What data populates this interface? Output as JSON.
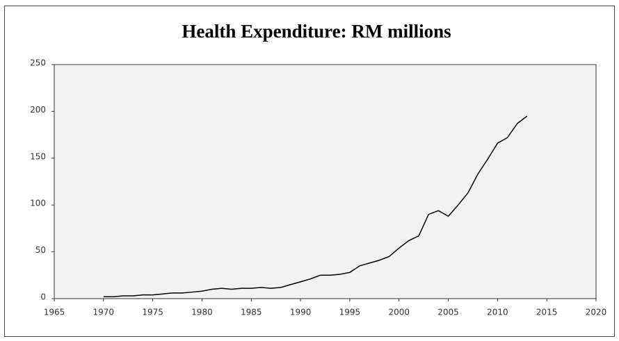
{
  "chart_data": {
    "type": "line",
    "title": "Health Expenditure: RM millions",
    "x": [
      1970,
      1971,
      1972,
      1973,
      1974,
      1975,
      1976,
      1977,
      1978,
      1979,
      1980,
      1981,
      1982,
      1983,
      1984,
      1985,
      1986,
      1987,
      1988,
      1989,
      1990,
      1991,
      1992,
      1993,
      1994,
      1995,
      1996,
      1997,
      1998,
      1999,
      2000,
      2001,
      2002,
      2003,
      2004,
      2005,
      2006,
      2007,
      2008,
      2009,
      2010,
      2011,
      2012,
      2013
    ],
    "series": [
      {
        "color": "#000000",
        "values": [
          2,
          2,
          3,
          3,
          4,
          4,
          5,
          6,
          6,
          7,
          8,
          10,
          11,
          10,
          11,
          11,
          12,
          11,
          12,
          15,
          18,
          21,
          25,
          25,
          26,
          28,
          35,
          38,
          41,
          45,
          54,
          62,
          67,
          90,
          94,
          88,
          100,
          113,
          133,
          149,
          166,
          172,
          187,
          195
        ]
      }
    ],
    "xlim": [
      1965,
      2020
    ],
    "xticks": [
      1965,
      1970,
      1975,
      1980,
      1985,
      1990,
      1995,
      2000,
      2005,
      2010,
      2015,
      2020
    ],
    "ylim": [
      0,
      250
    ],
    "yticks": [
      0,
      50,
      100,
      150,
      200,
      250
    ]
  }
}
